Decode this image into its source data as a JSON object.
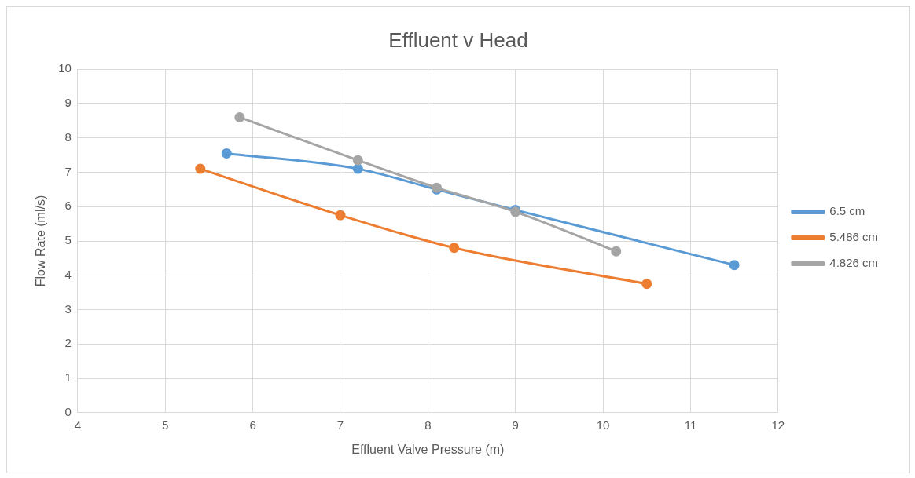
{
  "chart_data": {
    "type": "line",
    "title": "Effluent v Head",
    "xlabel": "Effluent Valve Pressure (m)",
    "ylabel": "Flow Rate (ml/s)",
    "series": [
      {
        "name": "6.5 cm",
        "color": "#5b9bd5",
        "x": [
          5.7,
          7.2,
          8.1,
          9.0,
          11.5
        ],
        "values": [
          7.55,
          7.1,
          6.5,
          5.9,
          4.3
        ]
      },
      {
        "name": "5.486 cm",
        "color": "#ed7d31",
        "x": [
          5.4,
          7.0,
          8.3,
          10.5
        ],
        "values": [
          7.1,
          5.75,
          4.8,
          3.75
        ]
      },
      {
        "name": "4.826 cm",
        "color": "#a5a5a5",
        "x": [
          5.85,
          7.2,
          8.1,
          9.0,
          10.15
        ],
        "values": [
          8.6,
          7.35,
          6.55,
          5.85,
          4.7
        ]
      }
    ],
    "xlim": [
      4,
      12
    ],
    "xticks": [
      4,
      5,
      6,
      7,
      8,
      9,
      10,
      11,
      12
    ],
    "ylim": [
      0,
      10
    ],
    "yticks": [
      0,
      1,
      2,
      3,
      4,
      5,
      6,
      7,
      8,
      9,
      10
    ],
    "grid": true,
    "legend": "right",
    "marker": "circle",
    "line_style": "solid"
  }
}
